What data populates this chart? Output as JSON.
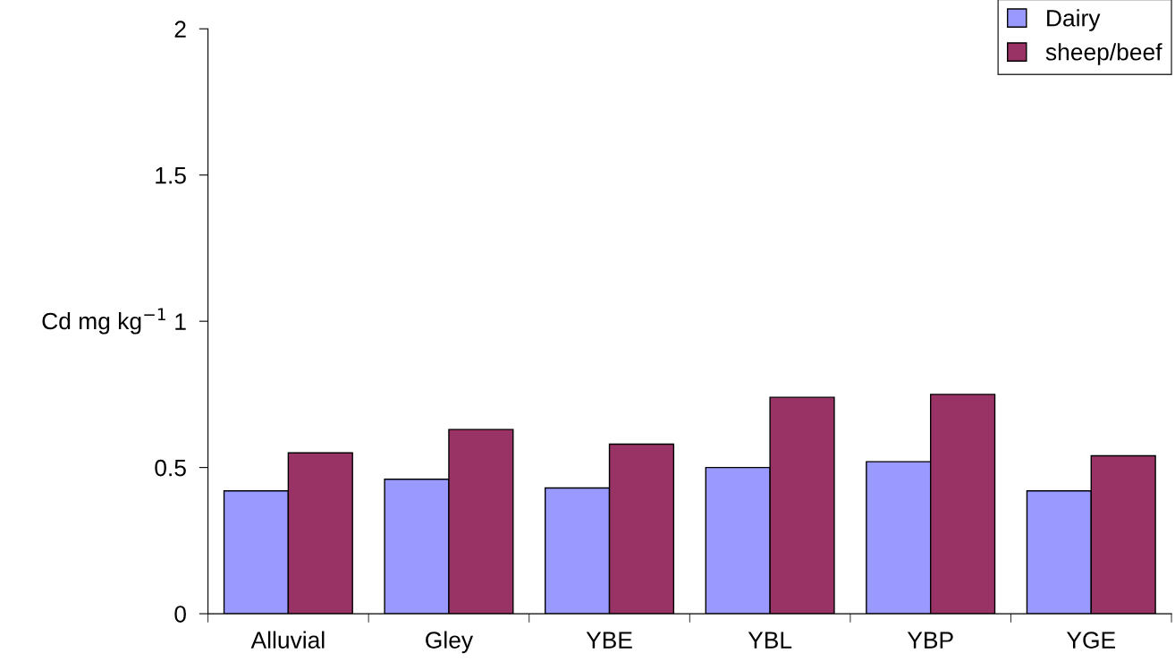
{
  "chart_data": {
    "type": "bar",
    "ylabel": "Cd mg kg$^{−1}$",
    "categories": [
      "Alluvial",
      "Gley",
      "YBE",
      "YBL",
      "YBP",
      "YGE"
    ],
    "series": [
      {
        "name": "Dairy",
        "color": "#9999ff",
        "values": [
          0.42,
          0.46,
          0.43,
          0.5,
          0.52,
          0.42
        ]
      },
      {
        "name": "sheep/beef",
        "color": "#993366",
        "values": [
          0.55,
          0.63,
          0.58,
          0.74,
          0.75,
          0.54
        ]
      }
    ],
    "ylim": [
      0,
      2
    ],
    "yticks": [
      0,
      0.5,
      1,
      1.5,
      2
    ],
    "grid": false,
    "legend": "top right"
  }
}
